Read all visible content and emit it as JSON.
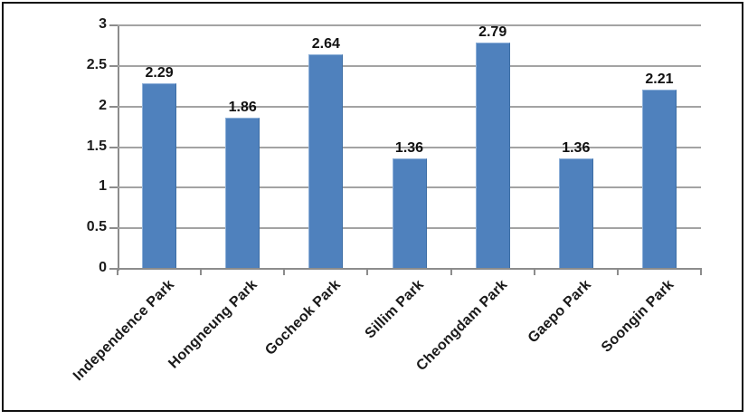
{
  "chart_data": {
    "type": "bar",
    "categories": [
      "Independence Park",
      "Hongneung Park",
      "Gocheok Park",
      "Sillim Park",
      "Cheongdam Park",
      "Gaepo Park",
      "Soongin Park"
    ],
    "values": [
      2.29,
      1.86,
      2.64,
      1.36,
      2.79,
      1.36,
      2.21
    ],
    "value_labels": [
      "2.29",
      "1.86",
      "2.64",
      "1.36",
      "2.79",
      "1.36",
      "2.21"
    ],
    "title": "",
    "xlabel": "",
    "ylabel": "",
    "ylim": [
      0,
      3
    ],
    "ytick_step": 0.5,
    "ytick_labels": [
      "0",
      "0.5",
      "1",
      "1.5",
      "2",
      "2.5",
      "3"
    ],
    "grid": true,
    "legend": "none",
    "x_label_rotation_deg": 45,
    "colors": {
      "bar_fill": "#4f81bd",
      "gridline": "#a3a3a3",
      "axis": "#8c8c8c",
      "text": "#1a1a1a",
      "frame_border": "#111111",
      "background": "#ffffff"
    }
  }
}
